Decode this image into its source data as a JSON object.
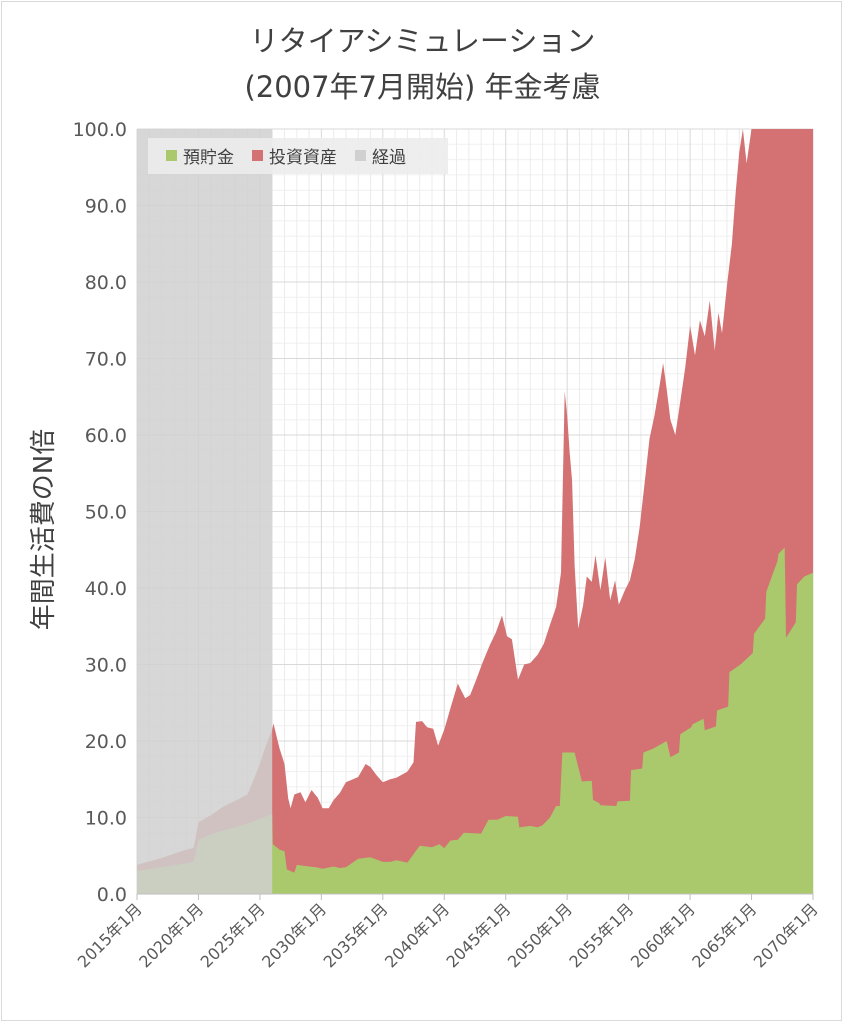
{
  "chart_data": {
    "type": "area",
    "stacked": true,
    "title": "リタイアシミュレーション",
    "subtitle": "(2007年7月開始) 年金考慮",
    "xlabel": "",
    "ylabel": "年間生活費のN倍",
    "ylim": [
      0,
      100
    ],
    "yticks": [
      "0.0",
      "10.0",
      "20.0",
      "30.0",
      "40.0",
      "50.0",
      "60.0",
      "70.0",
      "80.0",
      "90.0",
      "100.0"
    ],
    "xlim": [
      "2015-01",
      "2070-01"
    ],
    "xticks": [
      "2015年1月",
      "2020年1月",
      "2025年1月",
      "2030年1月",
      "2035年1月",
      "2040年1月",
      "2045年1月",
      "2050年1月",
      "2055年1月",
      "2060年1月",
      "2065年1月",
      "2070年1月"
    ],
    "grid": true,
    "legend_position": "top-left",
    "elapsed_range": [
      "2015-01",
      "2026-01"
    ],
    "series": [
      {
        "name": "預貯金",
        "color": "#a9c96c",
        "points": [
          [
            2015.0,
            3.0
          ],
          [
            2017.0,
            3.5
          ],
          [
            2019.0,
            4.0
          ],
          [
            2019.6,
            4.2
          ],
          [
            2020.0,
            7.0
          ],
          [
            2021.0,
            7.8
          ],
          [
            2022.0,
            8.3
          ],
          [
            2023.0,
            8.7
          ],
          [
            2024.0,
            9.2
          ],
          [
            2025.0,
            9.8
          ],
          [
            2026.0,
            10.5
          ],
          [
            2026.05,
            6.5
          ],
          [
            2026.6,
            5.8
          ],
          [
            2027.0,
            5.6
          ],
          [
            2027.2,
            3.2
          ],
          [
            2027.8,
            2.8
          ],
          [
            2028.0,
            3.8
          ],
          [
            2029.0,
            3.6
          ],
          [
            2029.6,
            3.5
          ],
          [
            2030.1,
            3.3
          ],
          [
            2031.0,
            3.6
          ],
          [
            2031.5,
            3.4
          ],
          [
            2032.0,
            3.5
          ],
          [
            2033.0,
            4.6
          ],
          [
            2034.0,
            4.8
          ],
          [
            2035.0,
            4.2
          ],
          [
            2035.6,
            4.2
          ],
          [
            2036.1,
            4.4
          ],
          [
            2037.0,
            4.1
          ],
          [
            2038.0,
            6.3
          ],
          [
            2039.0,
            6.1
          ],
          [
            2039.6,
            6.5
          ],
          [
            2040.0,
            6.0
          ],
          [
            2040.5,
            7.0
          ],
          [
            2041.1,
            7.1
          ],
          [
            2041.6,
            8.0
          ],
          [
            2043.0,
            7.9
          ],
          [
            2043.6,
            9.7
          ],
          [
            2044.3,
            9.7
          ],
          [
            2045.0,
            10.2
          ],
          [
            2046.0,
            10.1
          ],
          [
            2046.1,
            8.7
          ],
          [
            2047.0,
            8.9
          ],
          [
            2047.6,
            8.7
          ],
          [
            2048.0,
            9.0
          ],
          [
            2048.6,
            10.0
          ],
          [
            2049.1,
            11.5
          ],
          [
            2049.4,
            11.5
          ],
          [
            2049.6,
            18.5
          ],
          [
            2050.6,
            18.5
          ],
          [
            2051.2,
            14.7
          ],
          [
            2052.0,
            14.8
          ],
          [
            2052.1,
            12.3
          ],
          [
            2052.6,
            11.9
          ],
          [
            2052.7,
            11.6
          ],
          [
            2054.0,
            11.5
          ],
          [
            2054.1,
            12.1
          ],
          [
            2055.1,
            12.2
          ],
          [
            2055.2,
            16.2
          ],
          [
            2056.1,
            16.4
          ],
          [
            2056.2,
            18.5
          ],
          [
            2057.0,
            19.0
          ],
          [
            2058.1,
            20.0
          ],
          [
            2058.4,
            17.9
          ],
          [
            2059.1,
            18.5
          ],
          [
            2059.2,
            20.9
          ],
          [
            2060.1,
            21.8
          ],
          [
            2060.2,
            22.2
          ],
          [
            2061.1,
            22.9
          ],
          [
            2061.2,
            21.4
          ],
          [
            2062.1,
            21.9
          ],
          [
            2062.2,
            24.0
          ],
          [
            2063.1,
            24.5
          ],
          [
            2063.2,
            29.0
          ],
          [
            2064.1,
            30.0
          ],
          [
            2065.1,
            31.5
          ],
          [
            2065.2,
            34.0
          ],
          [
            2066.1,
            36.0
          ],
          [
            2066.2,
            39.5
          ],
          [
            2067.1,
            43.5
          ],
          [
            2067.2,
            44.5
          ],
          [
            2067.7,
            45.3
          ],
          [
            2067.8,
            33.5
          ],
          [
            2068.6,
            35.5
          ],
          [
            2068.7,
            40.5
          ],
          [
            2069.3,
            41.5
          ],
          [
            2070.0,
            42.0
          ]
        ]
      },
      {
        "name": "投資資産",
        "color": "#d47172",
        "total_points": [
          [
            2015.0,
            3.8
          ],
          [
            2017.0,
            4.7
          ],
          [
            2019.0,
            5.8
          ],
          [
            2019.6,
            6.0
          ],
          [
            2020.0,
            9.4
          ],
          [
            2021.0,
            10.3
          ],
          [
            2022.0,
            11.4
          ],
          [
            2023.0,
            12.2
          ],
          [
            2024.0,
            13.0
          ],
          [
            2025.0,
            17.0
          ],
          [
            2025.4,
            19.0
          ],
          [
            2026.0,
            21.5
          ],
          [
            2026.1,
            22.3
          ],
          [
            2026.6,
            19.0
          ],
          [
            2027.0,
            17.0
          ],
          [
            2027.3,
            12.5
          ],
          [
            2027.5,
            11.2
          ],
          [
            2027.8,
            13.0
          ],
          [
            2028.3,
            13.3
          ],
          [
            2028.7,
            12.0
          ],
          [
            2029.2,
            13.6
          ],
          [
            2029.7,
            12.6
          ],
          [
            2030.1,
            11.2
          ],
          [
            2030.6,
            11.2
          ],
          [
            2031.0,
            12.3
          ],
          [
            2031.5,
            13.2
          ],
          [
            2032.0,
            14.6
          ],
          [
            2033.0,
            15.3
          ],
          [
            2033.6,
            17.0
          ],
          [
            2034.0,
            16.6
          ],
          [
            2034.5,
            15.5
          ],
          [
            2035.0,
            14.6
          ],
          [
            2035.6,
            15.0
          ],
          [
            2036.1,
            15.2
          ],
          [
            2037.0,
            16.0
          ],
          [
            2037.5,
            17.2
          ],
          [
            2037.7,
            22.5
          ],
          [
            2038.2,
            22.6
          ],
          [
            2038.6,
            21.8
          ],
          [
            2039.1,
            21.6
          ],
          [
            2039.5,
            19.4
          ],
          [
            2040.0,
            21.5
          ],
          [
            2040.6,
            24.8
          ],
          [
            2041.1,
            27.5
          ],
          [
            2041.7,
            25.6
          ],
          [
            2042.1,
            26.0
          ],
          [
            2042.6,
            28.0
          ],
          [
            2043.1,
            30.2
          ],
          [
            2043.7,
            32.5
          ],
          [
            2044.2,
            34.2
          ],
          [
            2044.7,
            36.4
          ],
          [
            2045.1,
            33.7
          ],
          [
            2045.5,
            33.3
          ],
          [
            2046.0,
            28.0
          ],
          [
            2046.5,
            30.0
          ],
          [
            2047.0,
            30.2
          ],
          [
            2047.6,
            31.3
          ],
          [
            2048.1,
            32.7
          ],
          [
            2048.6,
            35.2
          ],
          [
            2049.1,
            37.5
          ],
          [
            2049.5,
            42.0
          ],
          [
            2049.7,
            58.0
          ],
          [
            2049.8,
            65.7
          ],
          [
            2050.0,
            62.5
          ],
          [
            2050.2,
            57.8
          ],
          [
            2050.4,
            54.0
          ],
          [
            2050.6,
            43.0
          ],
          [
            2050.9,
            34.7
          ],
          [
            2051.3,
            37.8
          ],
          [
            2051.6,
            41.5
          ],
          [
            2052.0,
            40.8
          ],
          [
            2052.3,
            44.3
          ],
          [
            2052.7,
            39.7
          ],
          [
            2053.1,
            44.0
          ],
          [
            2053.5,
            38.4
          ],
          [
            2053.9,
            41.0
          ],
          [
            2054.2,
            37.8
          ],
          [
            2054.7,
            39.7
          ],
          [
            2055.1,
            41.0
          ],
          [
            2055.5,
            43.8
          ],
          [
            2055.9,
            48.0
          ],
          [
            2056.3,
            53.7
          ],
          [
            2056.7,
            59.5
          ],
          [
            2057.1,
            62.5
          ],
          [
            2057.5,
            66.3
          ],
          [
            2057.8,
            69.4
          ],
          [
            2058.1,
            66.0
          ],
          [
            2058.4,
            62.0
          ],
          [
            2058.8,
            60.0
          ],
          [
            2059.2,
            64.4
          ],
          [
            2059.6,
            68.8
          ],
          [
            2060.0,
            74.3
          ],
          [
            2060.4,
            70.4
          ],
          [
            2060.8,
            75.0
          ],
          [
            2061.2,
            72.9
          ],
          [
            2061.6,
            77.6
          ],
          [
            2062.0,
            71.0
          ],
          [
            2062.3,
            76.0
          ],
          [
            2062.6,
            73.3
          ],
          [
            2063.0,
            79.6
          ],
          [
            2063.4,
            85.0
          ],
          [
            2063.7,
            91.6
          ],
          [
            2064.0,
            97.0
          ],
          [
            2064.3,
            100.0
          ],
          [
            2064.6,
            95.5
          ],
          [
            2065.0,
            100.0
          ],
          [
            2070.0,
            100.0
          ]
        ]
      },
      {
        "name": "経過",
        "color": "#d0d0d0"
      }
    ]
  }
}
